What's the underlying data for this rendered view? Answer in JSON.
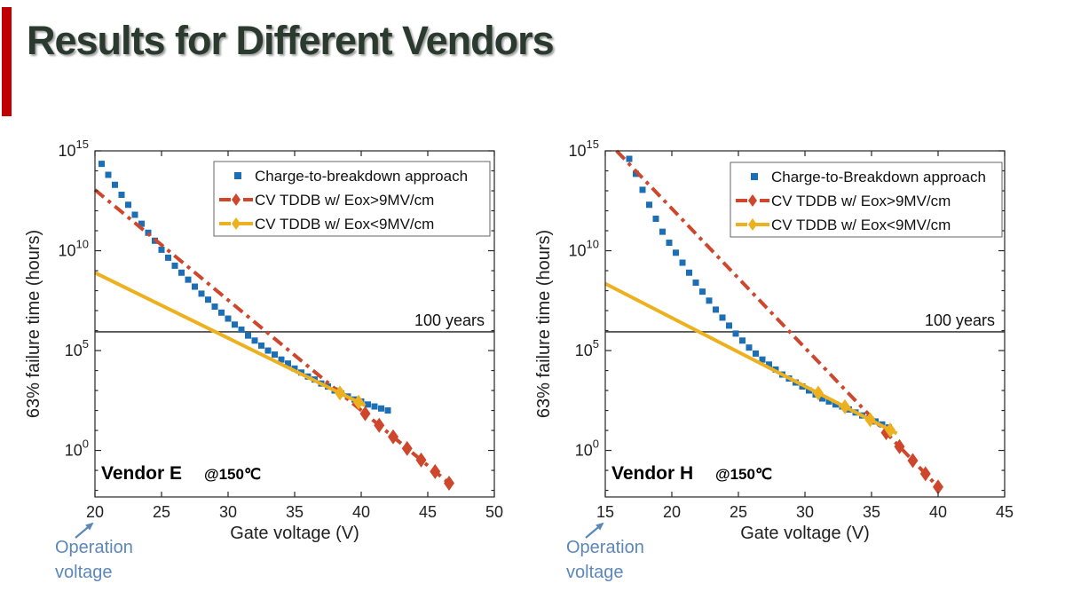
{
  "slide": {
    "title": "Results for Different Vendors",
    "title_color": "#2b3a2f",
    "accent_bar_color": "#c00000",
    "background": "#ffffff"
  },
  "chart_data": [
    {
      "type": "scatter",
      "vendor_label": "Vendor E",
      "temperature_label": "@150℃",
      "xlabel": "Gate voltage (V)",
      "ylabel": "63% failure time (hours)",
      "xlim": [
        20,
        50
      ],
      "xticks": [
        20,
        25,
        30,
        35,
        40,
        45,
        50
      ],
      "ylim_log10": [
        -2.33,
        15
      ],
      "ytick_exponents": [
        0,
        5,
        10,
        15
      ],
      "grid": false,
      "legend_position": "upper right",
      "axis_color": "#262626",
      "reference_line": {
        "label": "100 years",
        "log10_hours": 5.94,
        "color": "#404040"
      },
      "operation_voltage": {
        "line1": "Operation",
        "line2": "voltage",
        "color": "#5b87b9",
        "points_to_voltage": 20
      },
      "series": [
        {
          "name": "Charge-to-breakdown approach",
          "kind": "scatter",
          "marker": "square",
          "color": "#1c6fb4",
          "points_v_log10h": [
            [
              20.5,
              14.35
            ],
            [
              21,
              13.8
            ],
            [
              21.5,
              13.3
            ],
            [
              22,
              12.8
            ],
            [
              22.5,
              12.3
            ],
            [
              23,
              11.8
            ],
            [
              23.5,
              11.35
            ],
            [
              24,
              10.9
            ],
            [
              24.5,
              10.5
            ],
            [
              25,
              10.05
            ],
            [
              25.5,
              9.65
            ],
            [
              26,
              9.25
            ],
            [
              26.5,
              8.9
            ],
            [
              27,
              8.55
            ],
            [
              27.5,
              8.2
            ],
            [
              28,
              7.85
            ],
            [
              28.5,
              7.55
            ],
            [
              29,
              7.2
            ],
            [
              29.5,
              6.9
            ],
            [
              30,
              6.6
            ],
            [
              30.5,
              6.3
            ],
            [
              31,
              6.05
            ],
            [
              31.5,
              5.75
            ],
            [
              32,
              5.5
            ],
            [
              32.5,
              5.25
            ],
            [
              33,
              5.0
            ],
            [
              33.5,
              4.8
            ],
            [
              34,
              4.55
            ],
            [
              34.5,
              4.35
            ],
            [
              35,
              4.1
            ],
            [
              35.5,
              3.9
            ],
            [
              36,
              3.7
            ],
            [
              36.5,
              3.55
            ],
            [
              37,
              3.35
            ],
            [
              37.5,
              3.2
            ],
            [
              38,
              3.0
            ],
            [
              38.5,
              2.85
            ],
            [
              39,
              2.7
            ],
            [
              39.5,
              2.55
            ],
            [
              40,
              2.45
            ],
            [
              40.5,
              2.3
            ],
            [
              41,
              2.2
            ],
            [
              41.5,
              2.1
            ],
            [
              42,
              2.0
            ]
          ]
        },
        {
          "name": "CV TDDB w/ Eox>9MV/cm",
          "kind": "line",
          "style": "dashdot",
          "marker": "diamond",
          "color": "#ce472c",
          "line_v_log10h": [
            [
              20,
              13.05
            ],
            [
              46.8,
              -1.75
            ]
          ],
          "marker_voltages": [
            40.3,
            41.35,
            42.4,
            43.45,
            44.5,
            45.55,
            46.6
          ]
        },
        {
          "name": "CV TDDB w/ Eox<9MV/cm",
          "kind": "line",
          "style": "solid",
          "marker": "diamond",
          "color": "#edb120",
          "line_v_log10h": [
            [
              20,
              8.9
            ],
            [
              40.3,
              2.25
            ]
          ],
          "marker_voltages": [
            38.4,
            39.8
          ]
        }
      ]
    },
    {
      "type": "scatter",
      "vendor_label": "Vendor H",
      "temperature_label": "@150℃",
      "xlabel": "Gate voltage (V)",
      "ylabel": "63% failure time (hours)",
      "xlim": [
        15,
        45
      ],
      "xticks": [
        15,
        20,
        25,
        30,
        35,
        40,
        45
      ],
      "ylim_log10": [
        -2.33,
        15
      ],
      "ytick_exponents": [
        0,
        5,
        10,
        15
      ],
      "grid": false,
      "legend_position": "upper right",
      "axis_color": "#262626",
      "reference_line": {
        "label": "100 years",
        "log10_hours": 5.94,
        "color": "#404040"
      },
      "operation_voltage": {
        "line1": "Operation",
        "line2": "voltage",
        "color": "#5b87b9",
        "points_to_voltage": 15
      },
      "series": [
        {
          "name": "Charge-to-Breakdown approach",
          "kind": "scatter",
          "marker": "square",
          "color": "#1c6fb4",
          "points_v_log10h": [
            [
              16.8,
              14.6
            ],
            [
              17.3,
              13.85
            ],
            [
              17.8,
              13.05
            ],
            [
              18.3,
              12.3
            ],
            [
              18.8,
              11.6
            ],
            [
              19.3,
              10.95
            ],
            [
              19.8,
              10.4
            ],
            [
              20.3,
              9.9
            ],
            [
              20.8,
              9.4
            ],
            [
              21.3,
              8.9
            ],
            [
              21.8,
              8.4
            ],
            [
              22.3,
              7.95
            ],
            [
              22.8,
              7.5
            ],
            [
              23.3,
              7.05
            ],
            [
              23.8,
              6.65
            ],
            [
              24.3,
              6.25
            ],
            [
              24.8,
              5.85
            ],
            [
              25.3,
              5.5
            ],
            [
              25.8,
              5.15
            ],
            [
              26.3,
              4.85
            ],
            [
              26.8,
              4.55
            ],
            [
              27.3,
              4.3
            ],
            [
              27.8,
              4.05
            ],
            [
              28.3,
              3.8
            ],
            [
              28.8,
              3.6
            ],
            [
              29.3,
              3.4
            ],
            [
              29.8,
              3.2
            ],
            [
              30.3,
              3.0
            ],
            [
              30.8,
              2.8
            ],
            [
              31.3,
              2.6
            ],
            [
              31.8,
              2.45
            ],
            [
              32.3,
              2.3
            ],
            [
              32.8,
              2.2
            ],
            [
              33.3,
              2.05
            ],
            [
              33.8,
              1.9
            ],
            [
              34.3,
              1.75
            ],
            [
              34.8,
              1.6
            ],
            [
              35.3,
              1.45
            ],
            [
              35.8,
              1.3
            ],
            [
              36.3,
              1.15
            ]
          ]
        },
        {
          "name": "CV TDDB w/ Eox>9MV/cm",
          "kind": "line",
          "style": "dashdot",
          "marker": "diamond",
          "color": "#ce472c",
          "line_v_log10h": [
            [
              15.85,
              15
            ],
            [
              40.1,
              -1.9
            ]
          ],
          "marker_voltages": [
            36.1,
            37.1,
            38.1,
            39.05,
            40.0
          ]
        },
        {
          "name": "CV TDDB w/ Eox<9MV/cm",
          "kind": "line",
          "style": "solid",
          "marker": "diamond",
          "color": "#edb120",
          "line_v_log10h": [
            [
              15,
              8.35
            ],
            [
              36.9,
              0.85
            ]
          ],
          "marker_voltages": [
            31.0,
            33.0,
            34.9,
            36.4
          ]
        }
      ]
    }
  ]
}
